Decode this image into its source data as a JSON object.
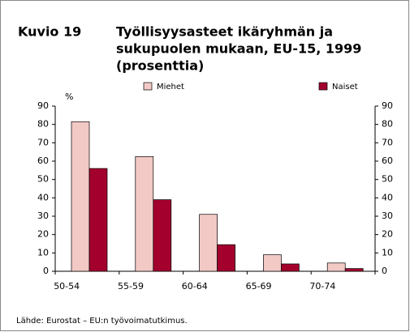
{
  "chart_data": {
    "type": "bar",
    "figure_label": "Kuvio 19",
    "title": [
      "Työllisyysasteet ikäryhmän ja",
      "sukupuolen mukaan, EU-15, 1999",
      "(prosenttia)"
    ],
    "y_label": "%",
    "categories": [
      "50-54",
      "55-59",
      "60-64",
      "65-69",
      "70-74"
    ],
    "series": [
      {
        "name": "Miehet",
        "color": "#f2c9c5",
        "values": [
          81.5,
          62.5,
          31,
          9,
          4.5
        ]
      },
      {
        "name": "Naiset",
        "color": "#a3002d",
        "values": [
          56,
          39,
          14.5,
          4,
          1.5
        ]
      }
    ],
    "ylim": [
      0,
      90
    ],
    "yticks": [
      0,
      10,
      20,
      30,
      40,
      50,
      60,
      70,
      80,
      90
    ],
    "y2lim": [
      0,
      90
    ],
    "y2ticks": [
      0,
      10,
      20,
      30,
      40,
      50,
      60,
      70,
      80,
      90
    ],
    "legend": "top",
    "source": "Lähde: Eurostat – EU:n työvoimatutkimus."
  }
}
